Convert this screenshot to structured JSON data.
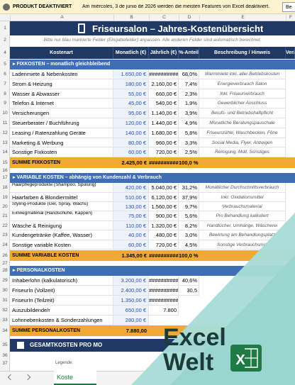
{
  "notification": {
    "label": "PRODUKT DEAKTIVIERT",
    "message": "Am miércoles, 3 de junio de 2026 werden die meisten Features von Excel deaktiviert.",
    "button": "Be"
  },
  "columns": [
    "A",
    "B",
    "C",
    "D",
    "E",
    "F"
  ],
  "title": {
    "row": 1,
    "text": "Friseursalon – Jahres-Kostenübersicht"
  },
  "note": {
    "row": 2,
    "text": "Bitte nur blau markierte Felder (Eingabefelder) anpassen. Alle anderen Felder sind automatisch berechnet."
  },
  "header": {
    "row": 4,
    "cells": [
      "Kostenart",
      "Monatlich (€)",
      "Jährlich (€)",
      "%-Anteil",
      "Beschreibung / Hinweis",
      "Verä"
    ]
  },
  "sections": [
    {
      "row": 5,
      "title": "▸  FIXKOSTEN  –  monatlich gleichbleibend",
      "rows": [
        {
          "row": 6,
          "name": "Ladenmiete & Nebenkosten",
          "monthly": "1.650,00 €",
          "yearly": "##########",
          "pct": "68,0%",
          "desc": "Warmmiete inkl. aller Betriebskosten"
        },
        {
          "row": 7,
          "name": "Strom & Heizung",
          "monthly": "180,00 €",
          "yearly": "2.160,00 €",
          "pct": "7,4%",
          "desc": "Energieverbrauch Salon"
        },
        {
          "row": 8,
          "name": "Wasser & Abwasser",
          "monthly": "55,00 €",
          "yearly": "660,00 €",
          "pct": "2,3%",
          "desc": "Inkl. Friseurverbrauch"
        },
        {
          "row": 9,
          "name": "Telefon & Internet",
          "monthly": "45,00 €",
          "yearly": "540,00 €",
          "pct": "1,9%",
          "desc": "Gewerblicher Anschluss"
        },
        {
          "row": 10,
          "name": "Versicherungen",
          "monthly": "95,00 €",
          "yearly": "1.140,00 €",
          "pct": "3,9%",
          "desc": "Berufs- und Betriebshaftpflicht"
        },
        {
          "row": 11,
          "name": "Steuerberater / Buchführung",
          "monthly": "120,00 €",
          "yearly": "1.440,00 €",
          "pct": "4,9%",
          "desc": "Monatliche Beratungspauschale"
        },
        {
          "row": 12,
          "name": "Leasing / Ratenzahlung Geräte",
          "monthly": "140,00 €",
          "yearly": "1.680,00 €",
          "pct": "5,8%",
          "desc": "Friseurstühle, Waschbecken, Föne"
        },
        {
          "row": 13,
          "name": "Marketing & Werbung",
          "monthly": "80,00 €",
          "yearly": "960,00 €",
          "pct": "3,3%",
          "desc": "Social Media, Flyer, Anzeigen"
        },
        {
          "row": 14,
          "name": "Sonstige Fixkosten",
          "monthly": "60,00 €",
          "yearly": "720,00 €",
          "pct": "2,5%",
          "desc": "Reinigung, Müll, Sonstiges"
        }
      ],
      "sum": {
        "row": 15,
        "name": "SUMME FIXKOSTEN",
        "monthly": "2.425,00 €",
        "yearly": "##########",
        "pct": "100,0 %"
      },
      "gap_row": 16
    },
    {
      "row": 17,
      "title": "▸  VARIABLE KOSTEN  –  abhängig von Kundenzahl & Verbrauch",
      "rows": [
        {
          "row": 18,
          "name": "Haarpflegeprodukte (Shampoo, Spülung)",
          "monthly": "420,00 €",
          "yearly": "5.040,00 €",
          "pct": "31,2%",
          "desc": "Monatlicher Durchschnittsverbrauch"
        },
        {
          "row": 19,
          "name": "Haarfarben & Blondiermittel",
          "monthly": "510,00 €",
          "yearly": "6.120,00 €",
          "pct": "37,9%",
          "desc": "Inkl. Oxidationsmittel"
        },
        {
          "row": 20,
          "name": "Styling-Produkte (Gel, Spray, Wachs)",
          "monthly": "130,00 €",
          "yearly": "1.560,00 €",
          "pct": "9,7%",
          "desc": "Verbrauchsmaterial"
        },
        {
          "row": 21,
          "name": "Einwegmaterial (Handschuhe, Kappen)",
          "monthly": "75,00 €",
          "yearly": "900,00 €",
          "pct": "5,6%",
          "desc": "Pro Behandlung kalkuliert"
        },
        {
          "row": 22,
          "name": "Wäsche & Reinigung",
          "monthly": "110,00 €",
          "yearly": "1.320,00 €",
          "pct": "8,2%",
          "desc": "Handtücher, Umhänge, Wäscherei"
        },
        {
          "row": 23,
          "name": "Kundengetränke (Kaffee, Wasser)",
          "monthly": "40,00 €",
          "yearly": "480,00 €",
          "pct": "3,0%",
          "desc": "Bewirtung am Behandlungsplatz"
        },
        {
          "row": 24,
          "name": "Sonstige variable Kosten",
          "monthly": "60,00 €",
          "yearly": "720,00 €",
          "pct": "4,5%",
          "desc": "Sonstige Verbrauchsmat"
        }
      ],
      "sum": {
        "row": 26,
        "name": "SUMME VARIABLE KOSTEN",
        "monthly": "1.345,00 €",
        "yearly": "##########",
        "pct": "100,0 %"
      },
      "gap_row": 27
    },
    {
      "row": 28,
      "title": "▸  PERSONALKOSTEN",
      "rows": [
        {
          "row": 29,
          "name": "Inhaberlohn (kalkulatorisch)",
          "monthly": "3.200,00 €",
          "yearly": "##########",
          "pct": "40,6%"
        },
        {
          "row": 30,
          "name": "FriseurIn (Vollzeit)",
          "monthly": "2.400,00 €",
          "yearly": "##########",
          "pct": "30,5"
        },
        {
          "row": 31,
          "name": "FriseurIn (Teilzeit)",
          "monthly": "1.350,00 €",
          "yearly": "##########"
        },
        {
          "row": 32,
          "name": "Auszubildende/r",
          "monthly": "650,00 €",
          "yearly": "7.800"
        },
        {
          "row": 33,
          "name": "Lohnnebenkosten & Sonderzahlungen",
          "monthly": "280,00 €"
        }
      ],
      "sum": {
        "row": 34,
        "name": "SUMME PERSONALKOSTEN",
        "monthly": "7.880,00"
      }
    }
  ],
  "total": {
    "row": 35,
    "text": "GESAMTKOSTEN PRO MO"
  },
  "extra_rows": [
    36,
    37
  ],
  "legend": "Legende:",
  "tab": "Koste",
  "logo": {
    "line1": "Excel",
    "line2": "Welt",
    "icon": "X"
  }
}
